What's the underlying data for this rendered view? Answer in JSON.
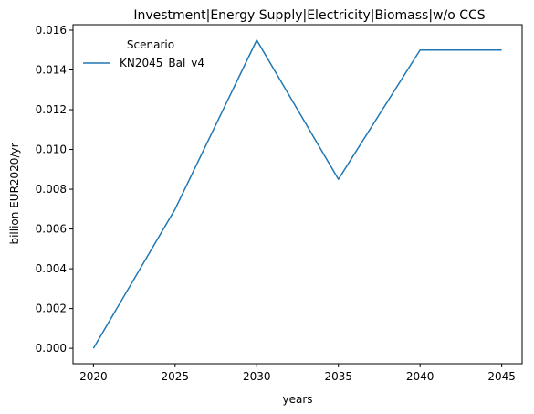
{
  "chart_data": {
    "type": "line",
    "title": "Investment|Energy Supply|Electricity|Biomass|w/o CCS",
    "xlabel": "years",
    "ylabel": "billion EUR2020/yr",
    "x": [
      2020,
      2025,
      2030,
      2035,
      2040,
      2045
    ],
    "xticks": [
      "2020",
      "2025",
      "2030",
      "2035",
      "2040",
      "2045"
    ],
    "yticks": [
      "0.000",
      "0.002",
      "0.004",
      "0.006",
      "0.008",
      "0.010",
      "0.012",
      "0.014",
      "0.016"
    ],
    "xlim": [
      2018.75,
      2046.25
    ],
    "ylim": [
      -0.000775,
      0.016275
    ],
    "grid": false,
    "legend": {
      "title": "Scenario",
      "placement": "top-left"
    },
    "series": [
      {
        "name": "KN2045_Bal_v4",
        "color": "#1f77b4",
        "values": [
          0.0,
          0.007,
          0.0155,
          0.0085,
          0.015,
          0.015
        ]
      }
    ]
  }
}
